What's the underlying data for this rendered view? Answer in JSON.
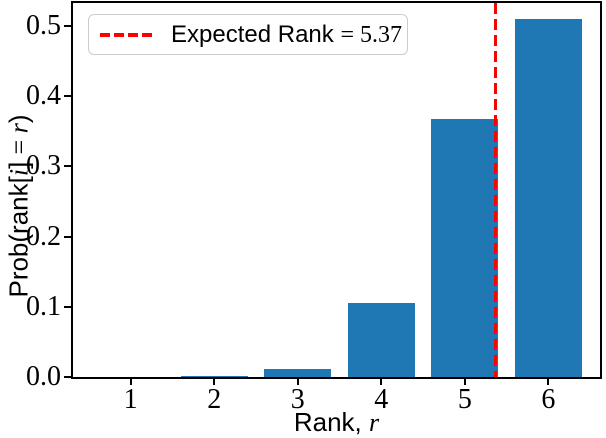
{
  "figure": {
    "background": "#ffffff",
    "bar_color": "#1f77b4",
    "spine_color": "#000000",
    "vline_color": "#ff0000",
    "legend_border_color": "#cccccc"
  },
  "legend": {
    "label": "Expected Rank = 5.37",
    "parts": [
      {
        "text": "Expected Rank ",
        "style": "sans"
      },
      {
        "text": "= 5.37",
        "style": "serif"
      }
    ]
  },
  "chart_data": {
    "type": "bar",
    "title": "",
    "xlabel": "Rank, r",
    "xlabel_parts": [
      {
        "text": "Rank, ",
        "style": "sans"
      },
      {
        "text": "r",
        "style": "serif-italic"
      }
    ],
    "ylabel": "Prob(rank[i] = r)",
    "ylabel_parts": [
      {
        "text": "Prob(rank[",
        "style": "sans"
      },
      {
        "text": "i",
        "style": "serif-italic"
      },
      {
        "text": "] ",
        "style": "sans"
      },
      {
        "text": "= ",
        "style": "serif"
      },
      {
        "text": "r",
        "style": "serif-italic"
      },
      {
        "text": ")",
        "style": "sans"
      }
    ],
    "categories": [
      1,
      2,
      3,
      4,
      5,
      6
    ],
    "xtick_labels": [
      "1",
      "2",
      "3",
      "4",
      "5",
      "6"
    ],
    "values": [
      0.0,
      0.002,
      0.012,
      0.106,
      0.368,
      0.51
    ],
    "bar_width": 0.8,
    "xlim": [
      0.31,
      6.63
    ],
    "ylim": [
      0,
      0.533
    ],
    "yticks": [
      0.0,
      0.1,
      0.2,
      0.3,
      0.4,
      0.5
    ],
    "ytick_labels": [
      "0.0",
      "0.1",
      "0.2",
      "0.3",
      "0.4",
      "0.5"
    ],
    "vline": {
      "x": 5.37,
      "color": "#ff0000",
      "linewidth": 3.4,
      "style": "dashed"
    },
    "legend_position": "upper left",
    "grid": false
  }
}
